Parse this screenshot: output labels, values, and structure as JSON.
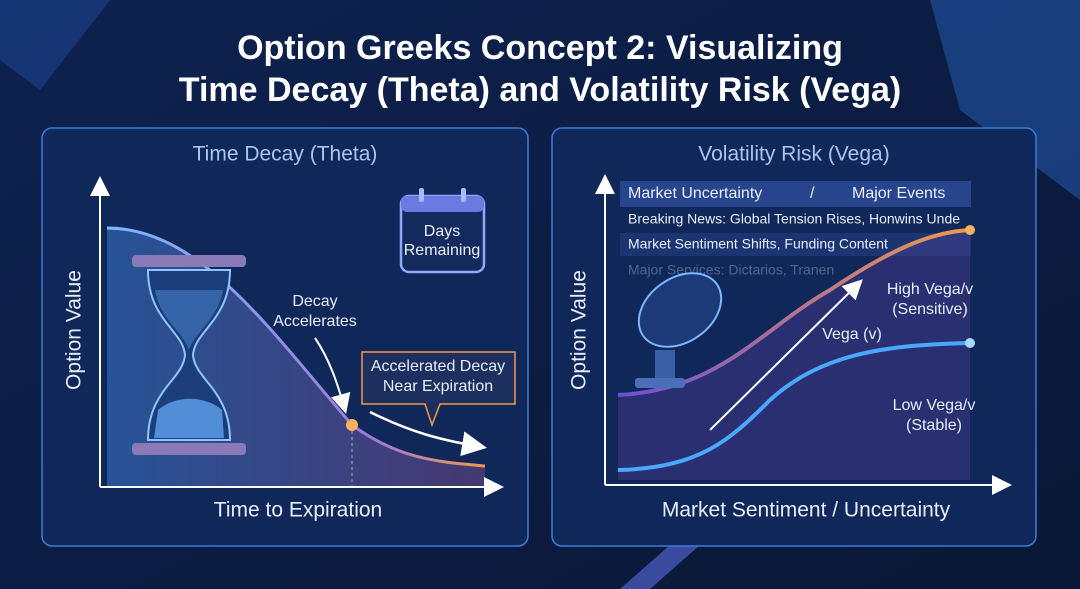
{
  "header": {
    "title": [
      "Option Greeks Concept 2: Visualizing",
      "Time Decay (Theta) and Volatility Risk (Vega)"
    ]
  },
  "left": {
    "title": "Time Decay (Theta)",
    "y_axis": "Option Value",
    "x_axis": "Time to Expiration",
    "calendar": [
      "Days",
      "Remaining"
    ],
    "decay_note": [
      "Decay",
      "Accelerates"
    ],
    "callout": [
      "Accelerated Decay",
      "Near Expiration"
    ]
  },
  "right": {
    "title": "Volatility Risk (Vega)",
    "y_axis": "Option Value",
    "x_axis": "Market Sentiment / Uncertainty",
    "banner": [
      "Market Uncertainty",
      "Major Events"
    ],
    "news": [
      "Breaking News: Global Tension Rises, Honwins Unde",
      "Market Sentiment Shifts, Funding Content",
      "Major Services: Dictarios, Tranen"
    ],
    "high": [
      "High Vega/v",
      "(Sensitive)"
    ],
    "vega": "Vega (v)",
    "low": [
      "Low Vega/v",
      "(Stable)"
    ]
  }
}
